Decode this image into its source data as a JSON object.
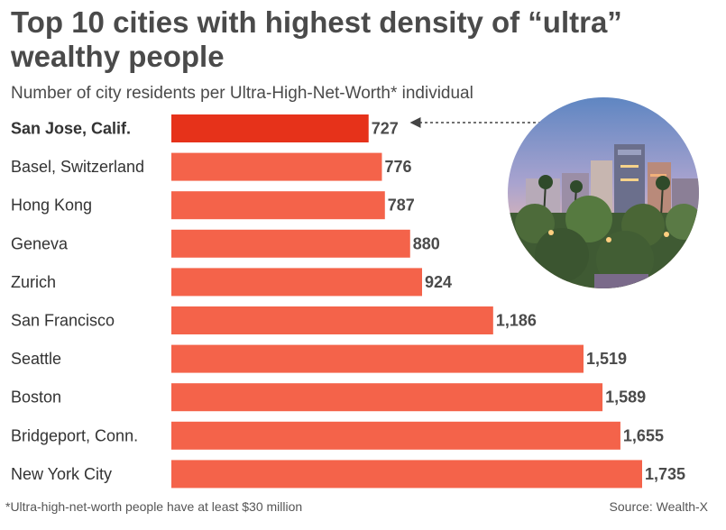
{
  "header": {
    "title": "Top 10 cities with highest density of “ultra” wealthy people",
    "subtitle": "Number of city residents per Ultra-High-Net-Worth* individual"
  },
  "footer": {
    "footnote": "*Ultra-high-net-worth people have at least $30 million",
    "source": "Source: Wealth-X"
  },
  "colors": {
    "bar": "#f4634a",
    "highlight_bar": "#e6321a",
    "arrow": "#444444"
  },
  "chart_data": {
    "type": "bar",
    "orientation": "horizontal",
    "title": "Top 10 cities with highest density of “ultra” wealthy people",
    "subtitle": "Number of city residents per Ultra-High-Net-Worth* individual",
    "categories": [
      "San Jose, Calif.",
      "Basel, Switzerland",
      "Hong Kong",
      "Geneva",
      "Zurich",
      "San Francisco",
      "Seattle",
      "Boston",
      "Bridgeport, Conn.",
      "New York City"
    ],
    "values": [
      727,
      776,
      787,
      880,
      924,
      1186,
      1519,
      1589,
      1655,
      1735
    ],
    "value_labels": [
      "727",
      "776",
      "787",
      "880",
      "924",
      "1,186",
      "1,519",
      "1,589",
      "1,655",
      "1,735"
    ],
    "highlight_index": 0,
    "xlim": [
      0,
      1735
    ],
    "grid": false,
    "legend": "none"
  }
}
